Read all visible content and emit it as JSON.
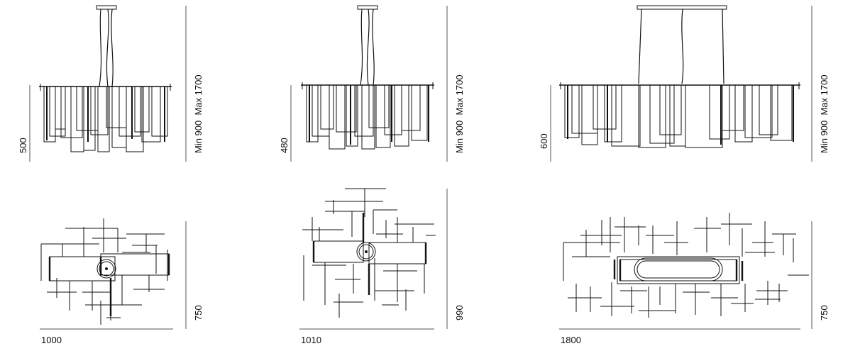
{
  "colors": {
    "line": "#111111",
    "dim_line": "#555555",
    "background": "#ffffff"
  },
  "elevations": [
    {
      "height_label": "500",
      "suspension_label": "Min 900  Max 1700"
    },
    {
      "height_label": "480",
      "suspension_label": "Min 900  Max 1700"
    },
    {
      "height_label": "600",
      "suspension_label": "Min 900  Max 1700"
    }
  ],
  "plans": [
    {
      "width_label": "1000",
      "depth_label": "750"
    },
    {
      "width_label": "1010",
      "depth_label": "990"
    },
    {
      "width_label": "1800",
      "depth_label": "750"
    }
  ]
}
